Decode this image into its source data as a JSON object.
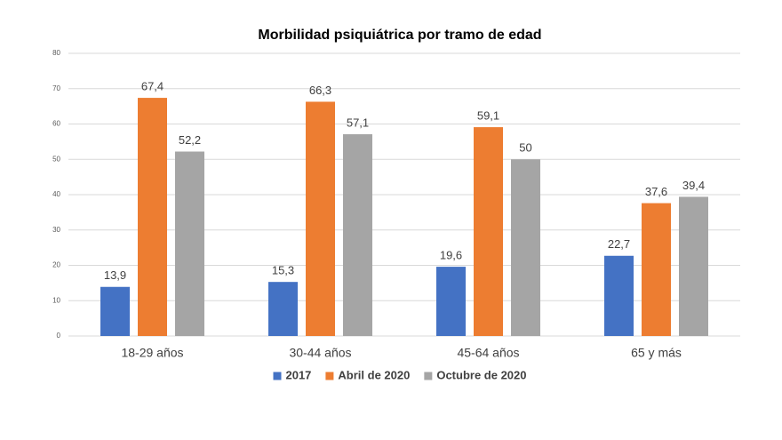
{
  "chart_data": {
    "type": "bar",
    "title": "Morbilidad psiquiátrica por tramo de edad",
    "categories": [
      "18-29 años",
      "30-44 años",
      "45-64 años",
      "65 y más"
    ],
    "series": [
      {
        "name": "2017",
        "color": "#4472c4",
        "values": [
          13.9,
          15.3,
          19.6,
          22.7
        ],
        "value_labels": [
          "13,9",
          "15,3",
          "19,6",
          "22,7"
        ]
      },
      {
        "name": "Abril de 2020",
        "color": "#ed7d31",
        "values": [
          67.4,
          66.3,
          59.1,
          37.6
        ],
        "value_labels": [
          "67,4",
          "66,3",
          "59,1",
          "37,6"
        ]
      },
      {
        "name": "Octubre de 2020",
        "color": "#a5a5a5",
        "values": [
          52.2,
          57.1,
          50,
          39.4
        ],
        "value_labels": [
          "52,2",
          "57,1",
          "50",
          "39,4"
        ]
      }
    ],
    "ylim": [
      0,
      80
    ],
    "yticks": [
      0,
      10,
      20,
      30,
      40,
      50,
      60,
      70,
      80
    ],
    "grid": true,
    "legend": "bottom"
  }
}
